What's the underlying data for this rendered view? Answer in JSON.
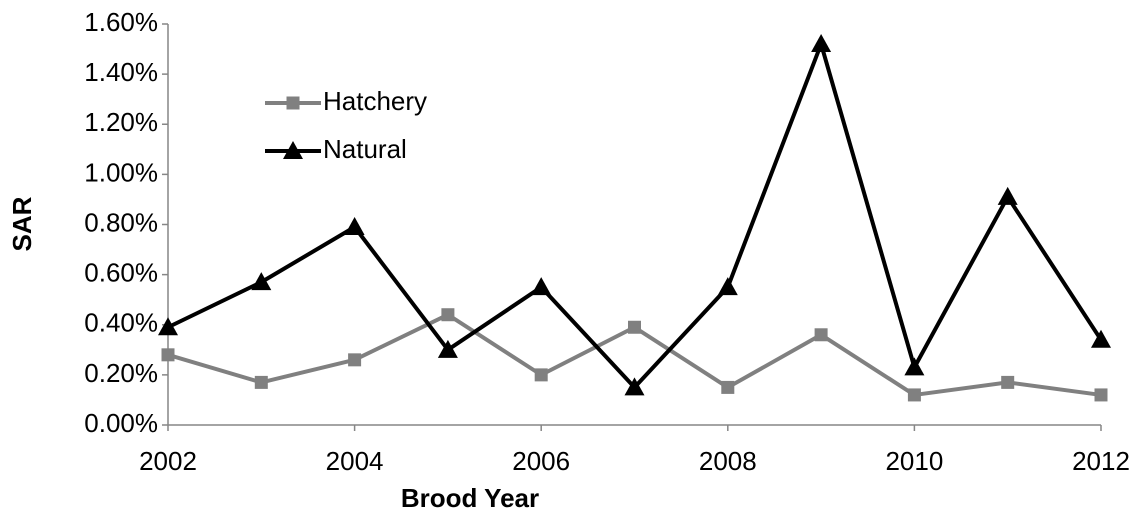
{
  "chart_data": {
    "type": "line",
    "x_label": "Brood Year",
    "y_label": "SAR",
    "x": [
      2002,
      2003,
      2004,
      2005,
      2006,
      2007,
      2008,
      2009,
      2010,
      2011,
      2012
    ],
    "series": [
      {
        "name": "Hatchery",
        "color": "#808080",
        "marker": "square",
        "values": [
          0.28,
          0.17,
          0.26,
          0.44,
          0.2,
          0.39,
          0.15,
          0.36,
          0.12,
          0.17,
          0.12
        ]
      },
      {
        "name": "Natural",
        "color": "#000000",
        "marker": "triangle",
        "values": [
          0.39,
          0.57,
          0.79,
          0.3,
          0.55,
          0.15,
          0.55,
          1.52,
          0.23,
          0.91,
          0.34
        ]
      }
    ],
    "xlim": [
      2002,
      2012
    ],
    "xticks": [
      2002,
      2004,
      2006,
      2008,
      2010,
      2012
    ],
    "ylim": [
      0,
      1.6
    ],
    "yticks": [
      {
        "value": 0,
        "label": "0.00%"
      },
      {
        "value": 0.2,
        "label": "0.20%"
      },
      {
        "value": 0.4,
        "label": "0.40%"
      },
      {
        "value": 0.6,
        "label": "0.60%"
      },
      {
        "value": 0.8,
        "label": "0.80%"
      },
      {
        "value": 1.0,
        "label": "1.00%"
      },
      {
        "value": 1.2,
        "label": "1.20%"
      },
      {
        "value": 1.4,
        "label": "1.40%"
      },
      {
        "value": 1.6,
        "label": "1.60%"
      }
    ],
    "grid": false,
    "legend": "upper left"
  }
}
